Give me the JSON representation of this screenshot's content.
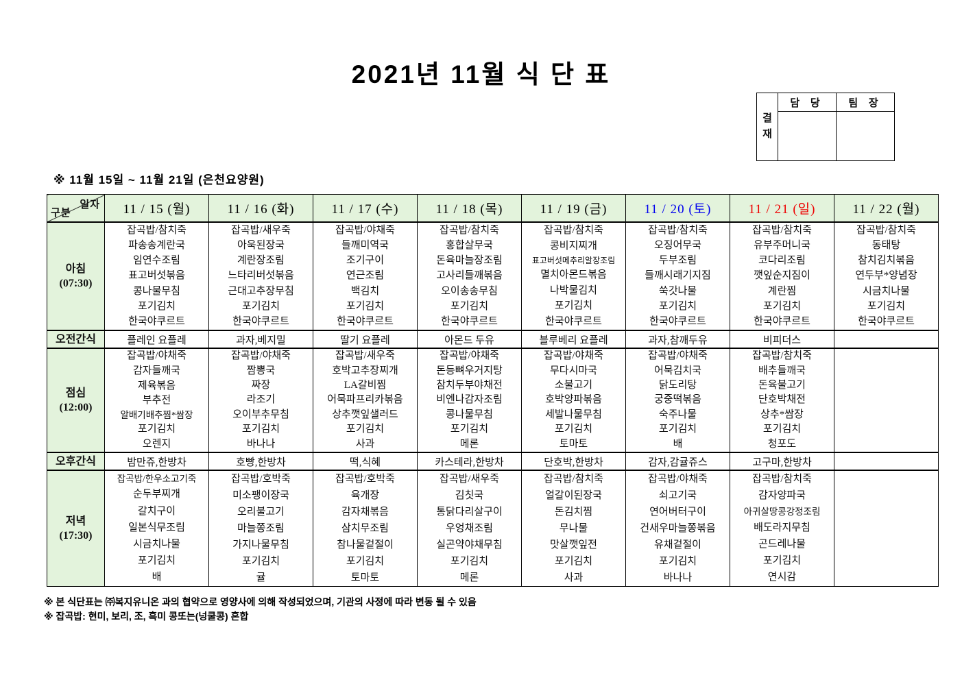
{
  "title": "2021년 11월 식 단 표",
  "approval": {
    "stamp_label": "결재",
    "columns": [
      "담 당",
      "팀 장"
    ]
  },
  "subtitle": "※ 11월 15일 ~ 11월 21일 (은천요양원)",
  "table": {
    "corner": {
      "top": "일자",
      "bottom": "구분"
    },
    "columns": [
      {
        "key": "11-15",
        "label": "11 / 15 (월)",
        "color": "#000000"
      },
      {
        "key": "11-16",
        "label": "11 / 16 (화)",
        "color": "#000000"
      },
      {
        "key": "11-17",
        "label": "11 / 17 (수)",
        "color": "#000000"
      },
      {
        "key": "11-18",
        "label": "11 / 18 (목)",
        "color": "#000000"
      },
      {
        "key": "11-19",
        "label": "11 / 19 (금)",
        "color": "#000000"
      },
      {
        "key": "11-20",
        "label": "11 / 20 (토)",
        "color": "#0000ee"
      },
      {
        "key": "11-21",
        "label": "11 / 21 (일)",
        "color": "#ee0000"
      },
      {
        "key": "11-22",
        "label": "11 / 22 (월)",
        "color": "#000000"
      }
    ],
    "rows": [
      {
        "key": "breakfast",
        "label": "아침",
        "time": "(07:30)",
        "type": "meal",
        "hclass": "h-b",
        "cells": [
          [
            "잡곡밥/참치죽",
            "파송송계란국",
            "임연수조림",
            "표고버섯볶음",
            "콩나물무침",
            "포기김치",
            "한국야쿠르트"
          ],
          [
            "잡곡밥/새우죽",
            "아욱된장국",
            "계란장조림",
            "느타리버섯볶음",
            "근대고추장무침",
            "포기김치",
            "한국야쿠르트"
          ],
          [
            "잡곡밥/야채죽",
            "들깨미역국",
            "조기구이",
            "연근조림",
            "백김치",
            "포기김치",
            "한국야쿠르트"
          ],
          [
            "잡곡밥/참치죽",
            "홍합살무국",
            "돈육마늘장조림",
            "고사리들깨볶음",
            "오이송송무침",
            "포기김치",
            "한국야쿠르트"
          ],
          [
            "잡곡밥/참치죽",
            "콩비지찌개",
            "표고버섯메추리알장조림",
            "멸치아몬드볶음",
            "나박물김치",
            "포기김치",
            "한국야쿠르트"
          ],
          [
            "잡곡밥/참치죽",
            "오징어무국",
            "두부조림",
            "들깨시래기지짐",
            "쑥갓나물",
            "포기김치",
            "한국야쿠르트"
          ],
          [
            "잡곡밥/참치죽",
            "유부주머니국",
            "코다리조림",
            "깻잎순지짐이",
            "계란찜",
            "포기김치",
            "한국야쿠르트"
          ],
          [
            "잡곡밥/참치죽",
            "동태탕",
            "참치김치볶음",
            "연두부*양념장",
            "시금치나물",
            "포기김치",
            "한국야쿠르트"
          ]
        ]
      },
      {
        "key": "am-snack",
        "label": "오전간식",
        "type": "snack",
        "cells": [
          "플레인 요플레",
          "과자,베지밀",
          "딸기 요플레",
          "아몬드 두유",
          "블루베리 요플레",
          "과자,참깨두유",
          "비피더스",
          ""
        ]
      },
      {
        "key": "lunch",
        "label": "점심",
        "time": "(12:00)",
        "type": "meal",
        "hclass": "h-l",
        "cells": [
          [
            "잡곡밥/야채죽",
            "감자들깨국",
            "제육볶음",
            "부추전",
            "알배기배추찜*쌈장",
            "포기김치",
            "오렌지"
          ],
          [
            "잡곡밥/야채죽",
            "짬뽕국",
            "짜장",
            "라조기",
            "오이부추무침",
            "포기김치",
            "바나나"
          ],
          [
            "잡곡밥/새우죽",
            "호박고추장찌개",
            "LA갈비찜",
            "어묵파프리카볶음",
            "상추깻잎샐러드",
            "포기김치",
            "사과"
          ],
          [
            "잡곡밥/야채죽",
            "돈등뼈우거지탕",
            "참치두부야채전",
            "비엔나감자조림",
            "콩나물무침",
            "포기김치",
            "메론"
          ],
          [
            "잡곡밥/야채죽",
            "무다시마국",
            "소불고기",
            "호박양파볶음",
            "세발나물무침",
            "포기김치",
            "토마토"
          ],
          [
            "잡곡밥/야채죽",
            "어묵김치국",
            "닭도리탕",
            "궁중떡볶음",
            "숙주나물",
            "포기김치",
            "배"
          ],
          [
            "잡곡밥/참치죽",
            "배추들깨국",
            "돈육불고기",
            "단호박채전",
            "상추*쌈장",
            "포기김치",
            "청포도"
          ],
          []
        ]
      },
      {
        "key": "pm-snack",
        "label": "오후간식",
        "type": "snack",
        "cells": [
          "밤만쥬,한방차",
          "호빵,한방차",
          "떡,식혜",
          "카스테라,한방차",
          "단호박,한방차",
          "감자,감귤쥬스",
          "고구마,한방차",
          ""
        ]
      },
      {
        "key": "dinner",
        "label": "저녁",
        "time": "(17:30)",
        "type": "meal",
        "hclass": "h-d",
        "cells": [
          [
            "잡곡밥/한우소고기죽",
            "순두부찌개",
            "갈치구이",
            "일본식무조림",
            "시금치나물",
            "포기김치",
            "배"
          ],
          [
            "잡곡밥/호박죽",
            "미소팽이장국",
            "오리불고기",
            "마늘쫑조림",
            "가지나물무침",
            "포기김치",
            "귤"
          ],
          [
            "잡곡밥/호박죽",
            "육개장",
            "감자채볶음",
            "삼치무조림",
            "참나물겉절이",
            "포기김치",
            "토마토"
          ],
          [
            "잡곡밥/새우죽",
            "김칫국",
            "통닭다리살구이",
            "우엉채조림",
            "실곤약야채무침",
            "포기김치",
            "메론"
          ],
          [
            "잡곡밥/참치죽",
            "얼갈이된장국",
            "돈김치찜",
            "무나물",
            "맛살깻잎전",
            "포기김치",
            "사과"
          ],
          [
            "잡곡밥/야채죽",
            "쇠고기국",
            "연어버터구이",
            "건새우마늘쫑볶음",
            "유채겉절이",
            "포기김치",
            "바나나"
          ],
          [
            "잡곡밥/참치죽",
            "감자양파국",
            "아귀살땅콩강정조림",
            "배도라지무침",
            "곤드레나물",
            "포기김치",
            "연시감"
          ],
          []
        ]
      }
    ]
  },
  "footnotes": [
    "※ 본 식단표는 ㈜복지유니온 과의 협약으로 영양사에 의해 작성되었으며, 기관의 사정에 따라 변동 될 수 있음",
    "※ 잡곡밥: 현미, 보리, 조, 흑미 콩또는(넝쿨콩) 혼합"
  ]
}
